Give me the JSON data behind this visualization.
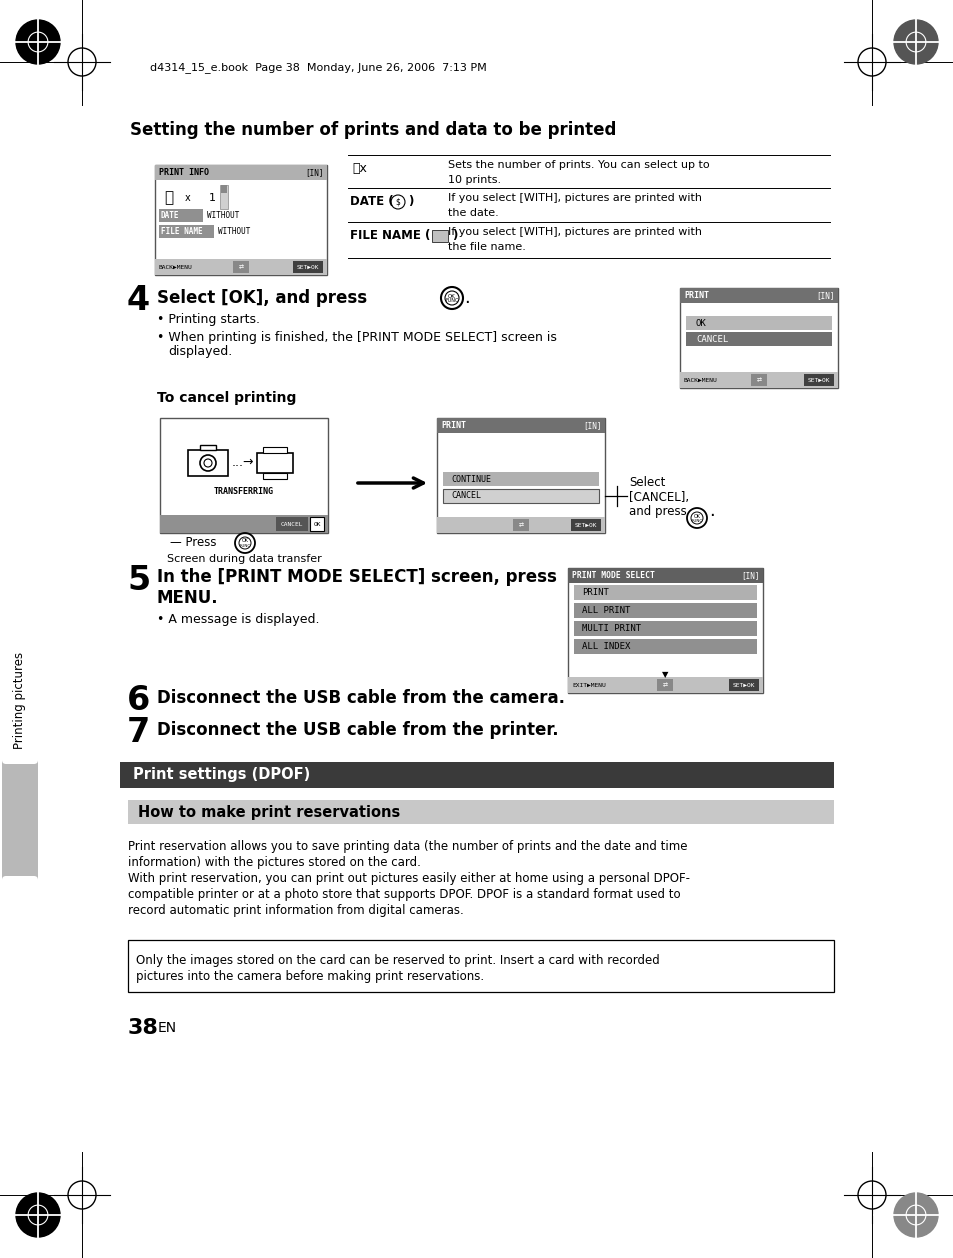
{
  "page_bg": "#ffffff",
  "header_text": "d4314_15_e.book  Page 38  Monday, June 26, 2006  7:13 PM",
  "section_title": "Setting the number of prints and data to be printed",
  "step4_text": "Select [OK], and press",
  "step4_bullet1": "• Printing starts.",
  "step4_bullet2": "• When printing is finished, the [PRINT MODE SELECT] screen is",
  "step4_bullet2b": "  displayed.",
  "cancel_label": "To cancel printing",
  "cancel_caption": "Screen during data transfer",
  "cancel_press": "— Press",
  "cancel_select1": "Select",
  "cancel_select2": "[CANCEL],",
  "cancel_select3": "and press",
  "step5_line1": "In the [PRINT MODE SELECT] screen, press",
  "step5_line2": "MENU.",
  "step5_bullet": "• A message is displayed.",
  "step6_text": "Disconnect the USB cable from the camera.",
  "step7_text": "Disconnect the USB cable from the printer.",
  "dark_bar_text": "Print settings (DPOF)",
  "dark_bar_bg": "#3a3a3a",
  "light_bar_text": "How to make print reservations",
  "light_bar_bg": "#c8c8c8",
  "body_line1": "Print reservation allows you to save printing data (the number of prints and the date and time",
  "body_line2": "information) with the pictures stored on the card.",
  "body_line3": "With print reservation, you can print out pictures easily either at home using a personal DPOF-",
  "body_line4": "compatible printer or at a photo store that supports DPOF. DPOF is a standard format used to",
  "body_line5": "record automatic print information from digital cameras.",
  "note_line1": "Only the images stored on the card can be reserved to print. Insert a card with recorded",
  "note_line2": "pictures into the camera before making print reservations.",
  "page_number": "38",
  "side_label": "Printing pictures"
}
